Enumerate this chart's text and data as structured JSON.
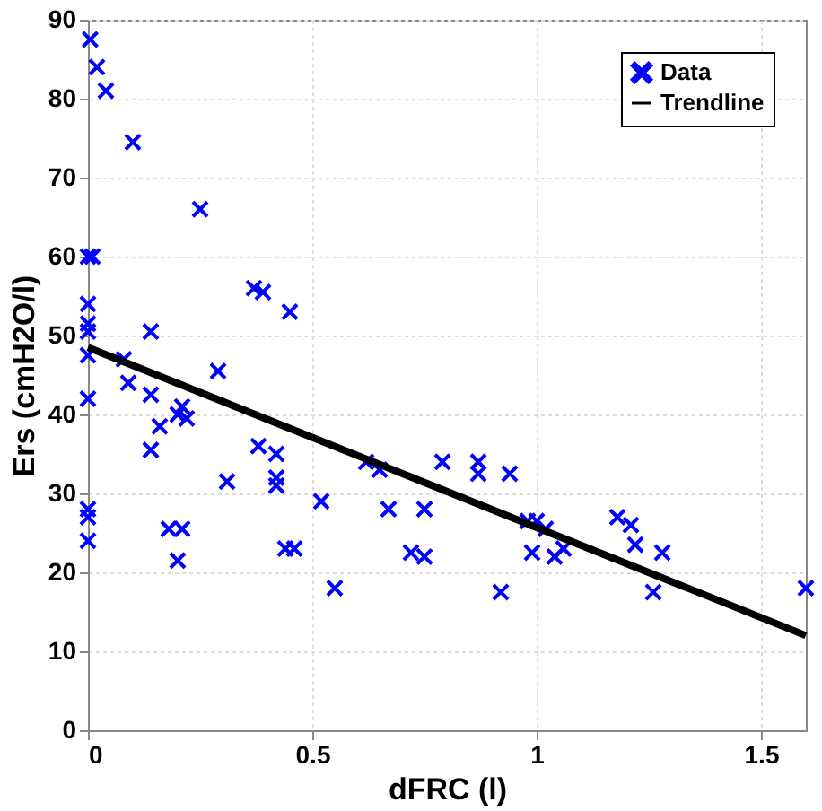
{
  "chart_data": {
    "type": "scatter",
    "xlabel": "dFRC (l)",
    "ylabel": "Ers (cmH2O/l)",
    "xlim": [
      0,
      1.6
    ],
    "ylim": [
      0,
      90
    ],
    "xticks": [
      0,
      0.5,
      1,
      1.5
    ],
    "yticks": [
      0,
      10,
      20,
      30,
      40,
      50,
      60,
      70,
      80,
      90
    ],
    "grid": true,
    "legend": "top right",
    "series": [
      {
        "name": "Data",
        "color": "#0000ff",
        "marker": "cross",
        "x": [
          0.005,
          0.02,
          0.04,
          0.1,
          0.25,
          0.0,
          0.01,
          0.37,
          0.39,
          0.45,
          0.0,
          0.0,
          0.0,
          0.14,
          0.0,
          0.0,
          0.08,
          0.09,
          0.14,
          0.29,
          0.2,
          0.21,
          0.16,
          0.14,
          0.22,
          0.31,
          0.38,
          0.42,
          0.42,
          0.42,
          0.0,
          0.0,
          0.0,
          0.18,
          0.21,
          0.2,
          0.44,
          0.46,
          0.52,
          0.55,
          0.62,
          0.65,
          0.67,
          0.72,
          0.75,
          0.75,
          0.79,
          0.87,
          0.87,
          0.92,
          0.94,
          0.98,
          1.0,
          0.99,
          1.02,
          1.04,
          1.06,
          1.18,
          1.21,
          1.22,
          1.26,
          1.28,
          1.6
        ],
        "values": [
          87.5,
          84,
          81,
          74.5,
          66,
          60,
          60,
          56,
          55.5,
          53,
          54,
          51.5,
          50.5,
          50.5,
          47.5,
          42,
          47,
          44,
          42.5,
          45.5,
          40,
          41,
          38.5,
          35.5,
          39.5,
          31.5,
          36,
          35,
          32,
          31,
          28,
          27,
          24,
          25.5,
          25.5,
          21.5,
          23,
          23,
          29,
          18,
          34,
          33,
          28,
          22.5,
          22,
          28,
          34,
          34,
          32.5,
          17.5,
          32.5,
          26.5,
          26.5,
          22.5,
          25.5,
          22,
          23,
          27,
          26,
          23.5,
          17.5,
          22.5,
          18
        ]
      },
      {
        "name": "Trendline",
        "color": "#000000",
        "type": "line",
        "marker": "none",
        "line_style": "solid",
        "x": [
          0,
          1.6
        ],
        "values": [
          48.5,
          12
        ]
      }
    ]
  }
}
